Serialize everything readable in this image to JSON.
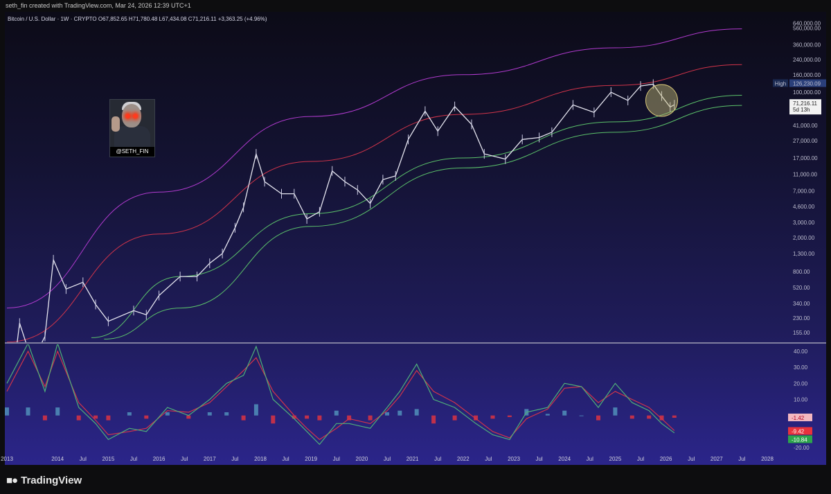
{
  "attribution": "seth_fin created with TradingView.com, Mar 24, 2026 12:39 UTC+1",
  "symbol": {
    "name": "Bitcoin / U.S. Dollar · 1W · CRYPTO",
    "open": "O67,852.65",
    "high": "H71,780.48",
    "low": "L67,434.08",
    "close": "C71,216.11",
    "change": "+3,363.25 (+4.96%)"
  },
  "avatar_label": "@SETH_FIN",
  "brand": "TradingView",
  "price_axis": [
    "640,000.00",
    "560,000.00",
    "360,000.00",
    "240,000.00",
    "160,000.00",
    "100,000.00",
    "41,000.00",
    "27,000.00",
    "17,000.00",
    "11,000.00",
    "7,000.00",
    "4,600.00",
    "3,000.00",
    "2,000.00",
    "1,300.00",
    "800.00",
    "520.00",
    "340.00",
    "230.00",
    "155.00"
  ],
  "osc_axis": [
    "40.00",
    "30.00",
    "20.00",
    "10.00",
    "-20.00"
  ],
  "time_axis": [
    "2013",
    "2014",
    "Jul",
    "2015",
    "Jul",
    "2016",
    "Jul",
    "2017",
    "Jul",
    "2018",
    "Jul",
    "2019",
    "Jul",
    "2020",
    "Jul",
    "2021",
    "Jul",
    "2022",
    "Jul",
    "2023",
    "Jul",
    "2024",
    "Jul",
    "2025",
    "Jul",
    "2026",
    "Jul",
    "2027",
    "Jul",
    "2028"
  ],
  "high_marker": {
    "label": "High",
    "value": "126,230.09"
  },
  "current_marker": {
    "value": "71,216.11",
    "countdown": "5d 13h"
  },
  "osc_markers": [
    {
      "value": "-1.42",
      "color": "#f3b8c0",
      "text_color": "#b0001e"
    },
    {
      "value": "-9.42",
      "color": "#e8323c",
      "text_color": "#ffffff"
    },
    {
      "value": "-10.84",
      "color": "#2ca54b",
      "text_color": "#ffffff"
    }
  ],
  "colors": {
    "up": "#2f8f5b",
    "down": "#e8323c",
    "band_magenta": "#b23bd0",
    "band_red": "#d2344a",
    "band_green": "#5cc36b",
    "price": "#e6e6f0",
    "hist_pos": "#4a7fb0",
    "hist_neg": "#c0304a"
  },
  "chart_data": {
    "type": "line",
    "title": "Bitcoin / U.S. Dollar · 1W · CRYPTO",
    "scale": "log",
    "x_range": [
      "2013-01",
      "2028-06"
    ],
    "y_range": [
      120,
      700000
    ],
    "price_series": {
      "x": [
        "2013-01",
        "2013-04",
        "2013-07",
        "2013-10",
        "2013-12",
        "2014-03",
        "2014-07",
        "2014-10",
        "2015-01",
        "2015-07",
        "2015-10",
        "2016-01",
        "2016-06",
        "2016-10",
        "2017-01",
        "2017-04",
        "2017-07",
        "2017-09",
        "2017-12",
        "2018-02",
        "2018-06",
        "2018-09",
        "2018-12",
        "2019-03",
        "2019-06",
        "2019-09",
        "2019-12",
        "2020-03",
        "2020-06",
        "2020-09",
        "2020-12",
        "2021-04",
        "2021-07",
        "2021-11",
        "2022-03",
        "2022-06",
        "2022-11",
        "2023-03",
        "2023-07",
        "2023-10",
        "2024-03",
        "2024-08",
        "2024-12",
        "2025-04",
        "2025-07",
        "2025-10",
        "2025-12",
        "2026-02",
        "2026-03"
      ],
      "y": [
        13,
        200,
        70,
        140,
        1100,
        500,
        600,
        330,
        210,
        280,
        250,
        420,
        700,
        700,
        1000,
        1300,
        2600,
        4500,
        19000,
        9000,
        6500,
        6500,
        3300,
        4000,
        12000,
        9000,
        7200,
        5000,
        9500,
        10500,
        28000,
        60000,
        35000,
        68000,
        42000,
        19000,
        16500,
        28000,
        29500,
        34000,
        71000,
        58000,
        100000,
        80000,
        118000,
        124000,
        90000,
        67000,
        71216
      ]
    },
    "bands": [
      {
        "name": "upper",
        "color": "#b23bd0",
        "x": [
          "2013-01",
          "2016-01",
          "2019-01",
          "2022-01",
          "2025-01",
          "2027-07"
        ],
        "y": [
          300,
          6800,
          52000,
          160000,
          330000,
          550000
        ]
      },
      {
        "name": "middle",
        "color": "#d2344a",
        "x": [
          "2013-01",
          "2016-01",
          "2019-01",
          "2022-01",
          "2025-01",
          "2027-07"
        ],
        "y": [
          120,
          2200,
          15500,
          55000,
          120000,
          210000
        ]
      },
      {
        "name": "lower-upper",
        "color": "#5cc36b",
        "x": [
          "2014-09",
          "2016-06",
          "2019-01",
          "2022-01",
          "2025-01",
          "2027-07"
        ],
        "y": [
          135,
          700,
          3800,
          17000,
          45000,
          92000
        ]
      },
      {
        "name": "lower",
        "color": "#5cc36b",
        "x": [
          "2014-12",
          "2016-06",
          "2019-01",
          "2022-01",
          "2025-01",
          "2027-07"
        ],
        "y": [
          130,
          300,
          2700,
          13000,
          34000,
          70000
        ]
      }
    ],
    "oscillator": {
      "y_range": [
        -22,
        45
      ],
      "x": [
        "2013-01",
        "2013-06",
        "2013-10",
        "2014-01",
        "2014-06",
        "2014-10",
        "2015-01",
        "2015-06",
        "2015-10",
        "2016-03",
        "2016-08",
        "2017-01",
        "2017-05",
        "2017-09",
        "2017-12",
        "2018-04",
        "2018-09",
        "2018-12",
        "2019-03",
        "2019-07",
        "2019-10",
        "2020-03",
        "2020-07",
        "2020-10",
        "2021-02",
        "2021-06",
        "2021-11",
        "2022-04",
        "2022-08",
        "2022-12",
        "2023-04",
        "2023-09",
        "2024-01",
        "2024-05",
        "2024-09",
        "2025-01",
        "2025-05",
        "2025-09",
        "2025-12",
        "2026-03"
      ],
      "fast": [
        20,
        45,
        15,
        45,
        5,
        -5,
        -15,
        -8,
        -10,
        5,
        0,
        10,
        20,
        25,
        43,
        10,
        -2,
        -10,
        -18,
        -5,
        -5,
        -8,
        5,
        15,
        32,
        10,
        5,
        -5,
        -12,
        -15,
        2,
        5,
        20,
        18,
        5,
        20,
        8,
        3,
        -5,
        -10.84
      ],
      "slow": [
        15,
        40,
        18,
        40,
        8,
        -3,
        -12,
        -10,
        -8,
        3,
        2,
        8,
        18,
        28,
        36,
        15,
        0,
        -8,
        -15,
        -8,
        -2,
        -5,
        3,
        12,
        28,
        15,
        8,
        -2,
        -10,
        -14,
        -2,
        4,
        17,
        18,
        8,
        15,
        10,
        5,
        -2,
        -9.42
      ]
    }
  }
}
